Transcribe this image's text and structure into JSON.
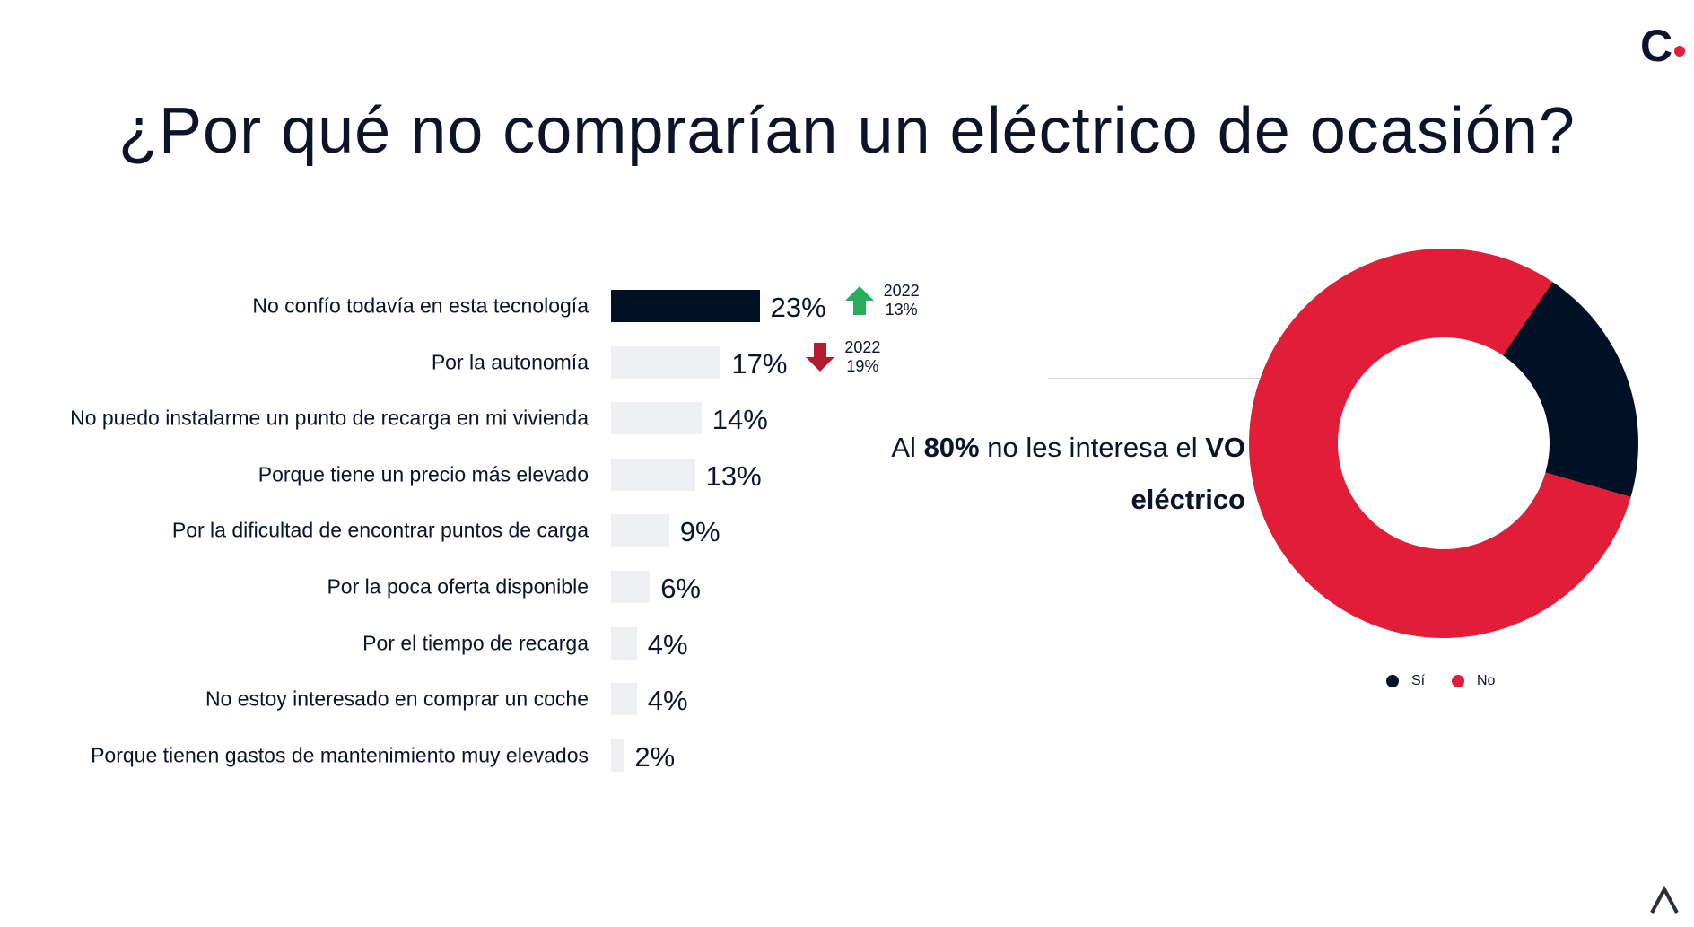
{
  "title": "¿Por qué no comprarían un eléctrico de ocasión?",
  "logo": "C",
  "chart_data": [
    {
      "type": "bar",
      "orientation": "horizontal",
      "categories": [
        "No confío todavía en esta tecnología",
        "Por la autonomía",
        "No puedo instalarme un punto de recarga en mi  vivienda",
        "Porque tiene un precio más elevado",
        "Por la dificultad de encontrar puntos de carga",
        "Por la poca oferta disponible",
        "Por el tiempo de recarga",
        "No estoy interesado en comprar un coche",
        "Porque tienen gastos de mantenimiento muy elevados"
      ],
      "values": [
        23,
        17,
        14,
        13,
        9,
        6,
        4,
        4,
        2
      ],
      "value_labels": [
        "23%",
        "17%",
        "14%",
        "13%",
        "9%",
        "6%",
        "4%",
        "4%",
        "2%"
      ],
      "highlight_color": "#001126",
      "bar_color": "#eeeff2",
      "comparisons": [
        {
          "category_index": 0,
          "direction": "up",
          "icon": "arrow-up-icon",
          "color": "#27ae5a",
          "year": "2022",
          "value": "13%"
        },
        {
          "category_index": 1,
          "direction": "down",
          "icon": "arrow-down-icon",
          "color": "#b01c30",
          "year": "2022",
          "value": "19%"
        }
      ]
    },
    {
      "type": "pie",
      "donut": true,
      "labels": [
        "Sí",
        "No"
      ],
      "values": [
        20,
        80
      ],
      "colors": [
        "#001126",
        "#e11d38"
      ],
      "legend_position": "bottom"
    }
  ],
  "callout": {
    "pre": "Al ",
    "pct": "80%",
    "mid": " no les interesa el ",
    "vo": "VO",
    "line2": "eléctrico"
  }
}
